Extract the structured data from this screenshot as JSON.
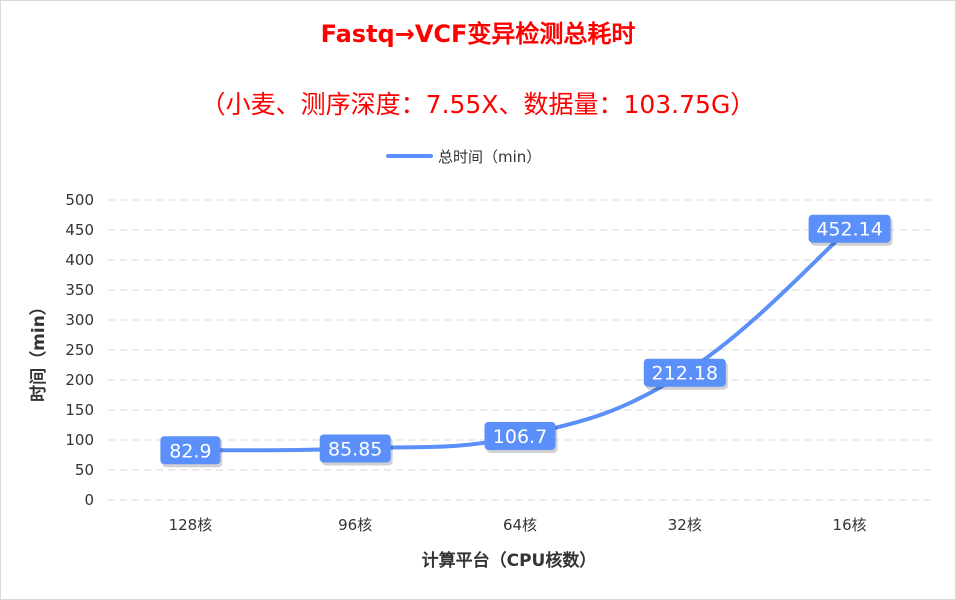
{
  "chart_data": {
    "type": "line",
    "title": "Fastq→VCF变异检测总耗时",
    "subtitle": "（小麦、测序深度：7.55X、数据量：103.75G）",
    "xlabel": "计算平台（CPU核数）",
    "ylabel": "时间（min）",
    "categories": [
      "128核",
      "96核",
      "64核",
      "32核",
      "16核"
    ],
    "series": [
      {
        "name": "总时间（min）",
        "values": [
          82.9,
          85.85,
          106.7,
          212.18,
          452.14
        ],
        "labels": [
          "82.9",
          "85.85",
          "106.7",
          "212.18",
          "452.14"
        ]
      }
    ],
    "ylim": [
      0,
      500
    ],
    "yticks": [
      0,
      50,
      100,
      150,
      200,
      250,
      300,
      350,
      400,
      450,
      500
    ],
    "smooth": true,
    "grid": "horizontal dashed",
    "legend": "top-center",
    "colors": {
      "series": "#5b8ff9",
      "title": "#ff0000",
      "grid": "#d9d9d9",
      "text": "#333333"
    }
  }
}
